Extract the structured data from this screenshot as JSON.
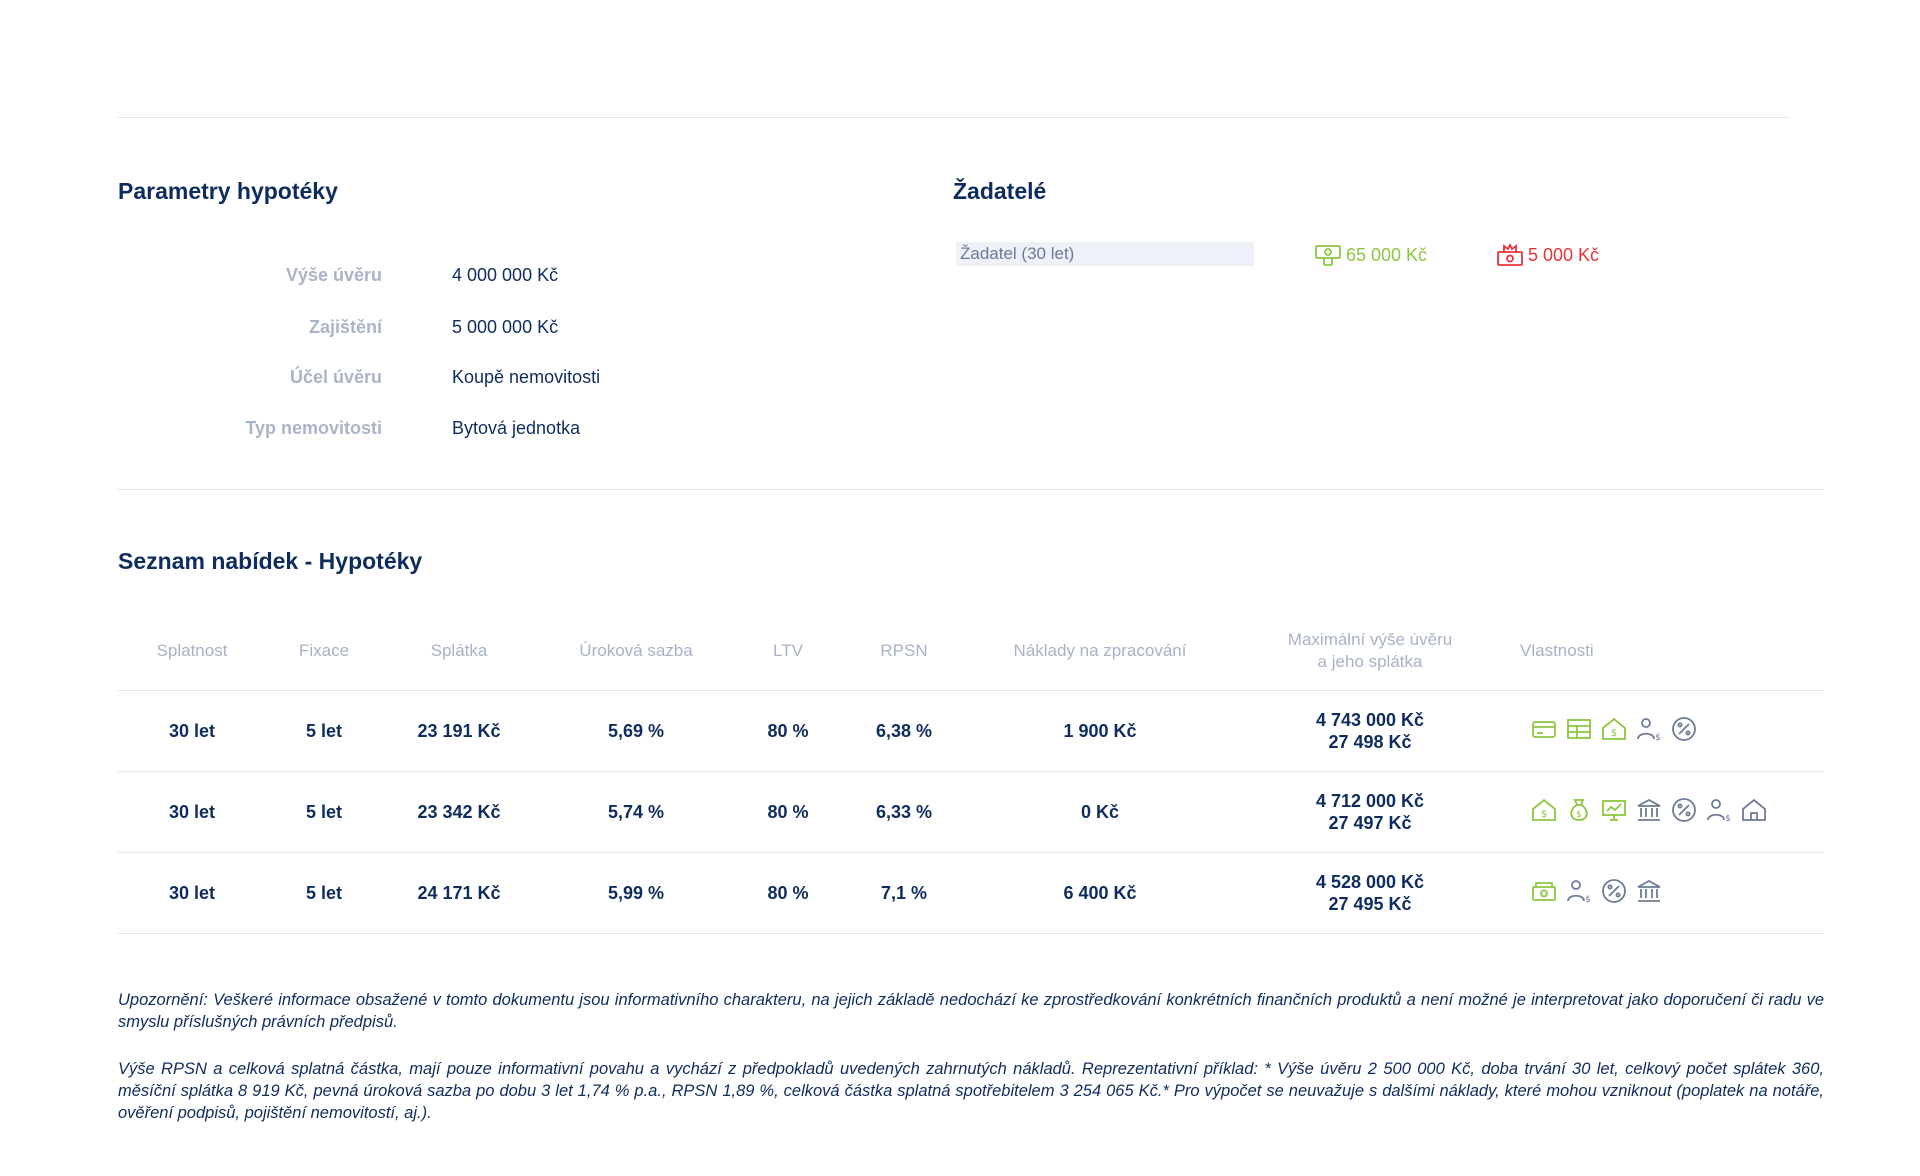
{
  "params": {
    "title": "Parametry hypotéky",
    "rows": [
      {
        "label": "Výše úvěru",
        "value": "4 000 000 Kč"
      },
      {
        "label": "Zajištění",
        "value": "5 000 000 Kč"
      },
      {
        "label": "Účel úvěru",
        "value": "Koupě nemovitosti"
      },
      {
        "label": "Typ nemovitosti",
        "value": "Bytová jednotka"
      }
    ]
  },
  "applicants": {
    "title": "Žadatelé",
    "applicant": "Žadatel  (30 let)",
    "income": "65 000 Kč",
    "expenses": "5 000 Kč",
    "income_color": "#8cc63f",
    "expenses_color": "#e8333a"
  },
  "offers": {
    "title": "Seznam nabídek - Hypotéky",
    "headers": {
      "splatnost": "Splatnost",
      "fixace": "Fixace",
      "splatka": "Splátka",
      "sazba": "Úroková sazba",
      "ltv": "LTV",
      "rpsn": "RPSN",
      "naklady": "Náklady na zpracování",
      "max_line1": "Maximální výše úvěru",
      "max_line2": "a jeho splátka",
      "vlastnosti": "Vlastnosti"
    },
    "rows": [
      {
        "splatnost": "30 let",
        "fixace": "5 let",
        "splatka": "23 191 Kč",
        "sazba": "5,69 %",
        "ltv": "80 %",
        "rpsn": "6,38 %",
        "naklady": "1 900 Kč",
        "max_amount": "4 743 000 Kč",
        "max_payment": "27 498 Kč"
      },
      {
        "splatnost": "30 let",
        "fixace": "5 let",
        "splatka": "23 342 Kč",
        "sazba": "5,74 %",
        "ltv": "80 %",
        "rpsn": "6,33 %",
        "naklady": "0 Kč",
        "max_amount": "4 712 000 Kč",
        "max_payment": "27 497 Kč"
      },
      {
        "splatnost": "30 let",
        "fixace": "5 let",
        "splatka": "24 171 Kč",
        "sazba": "5,99 %",
        "ltv": "80 %",
        "rpsn": "7,1 %",
        "naklady": "6 400 Kč",
        "max_amount": "4 528 000 Kč",
        "max_payment": "27 495 Kč"
      }
    ],
    "icons_row1": [
      "card-icon",
      "table-icon",
      "house-dollar-icon",
      "person-dollar-icon",
      "percent-icon"
    ],
    "icons_row2": [
      "house-dollar-icon",
      "money-bag-icon",
      "monitor-chart-icon",
      "bank-icon",
      "percent-icon",
      "person-dollar-icon",
      "house-icon"
    ],
    "icons_row3": [
      "cash-stack-icon",
      "person-dollar-icon",
      "percent-icon",
      "bank-icon"
    ],
    "icon_color_green": "#8cc63f",
    "icon_color_gray": "#6d7b95"
  },
  "notes": {
    "warning": "Upozornění: Veškeré informace obsažené v tomto dokumentu jsou informativního charakteru, na jejich základě nedochází ke zprostředkování konkrétních finančních produktů a není možné je interpretovat jako doporučení či radu ve smyslu příslušných právních předpisů.",
    "rpsn": "Výše RPSN a celková splatná částka, mají pouze informativní povahu a vychází z předpokladů uvedených zahrnutých nákladů. Reprezentativní příklad: * Výše úvěru 2 500 000 Kč, doba trvání 30 let, celkový počet splátek 360, měsíční splátka 8 919 Kč, pevná úroková sazba po dobu 3 let 1,74 % p.a., RPSN 1,89 %, celková částka splatná spotřebitelem 3 254 065 Kč.* Pro výpočet se neuvažuje s dalšími náklady, které mohou vzniknout (poplatek na notáře, ověření podpisů, pojištění nemovitostí, aj.)."
  }
}
